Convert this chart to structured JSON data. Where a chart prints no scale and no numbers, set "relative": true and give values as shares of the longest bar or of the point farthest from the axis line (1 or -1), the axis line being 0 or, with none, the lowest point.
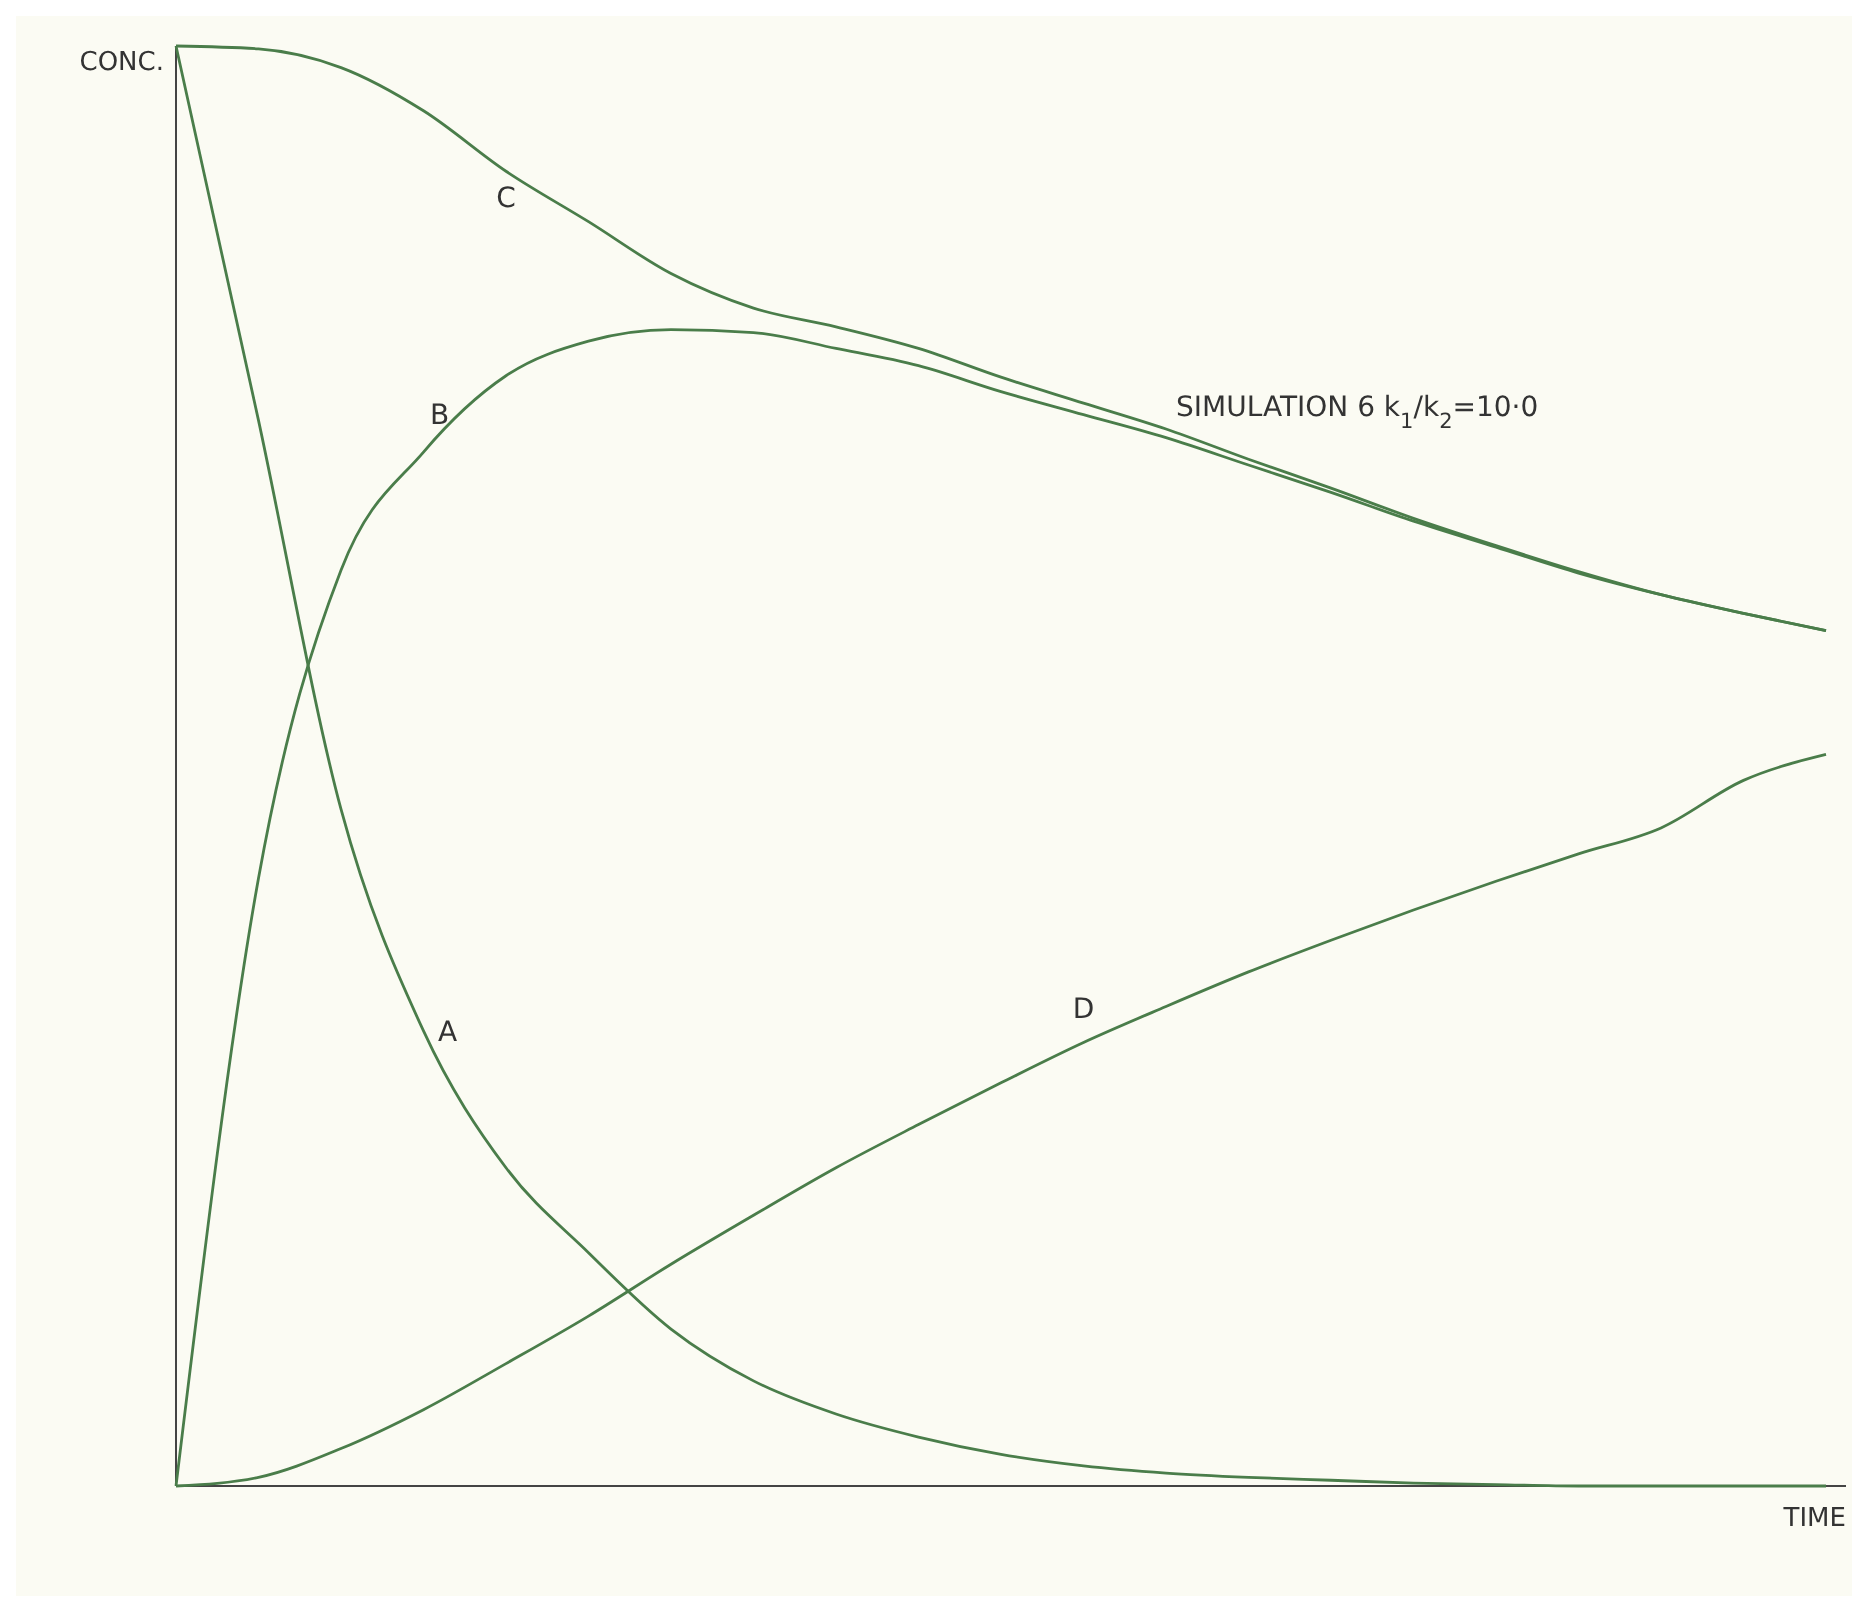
{
  "chart_data": {
    "type": "line",
    "relative": true,
    "xlabel": "TIME",
    "ylabel": "CONC.",
    "annotations": [
      "SIMULATION 6  k$_{1}$/k$_{2}$=10·0"
    ],
    "categories": [
      null,
      null,
      null,
      null,
      null,
      null,
      null,
      null,
      null,
      null,
      null,
      null,
      null,
      null,
      null,
      null,
      null,
      null,
      null,
      null,
      null
    ],
    "marker": "none",
    "line_style": "solid",
    "series": [
      {
        "name": "A",
        "color": "#4a7d4a",
        "values": [
          1,
          0.74,
          0.47,
          0.316,
          0.221,
          0.162,
          0.109,
          0.073,
          0.05,
          0.034,
          0.022,
          0.014,
          0.009,
          0.006,
          0.004,
          0.002,
          0.001,
          0,
          0,
          0,
          0
        ]
      },
      {
        "name": "B",
        "color": "#4a7d4a",
        "values": [
          0,
          0.422,
          0.636,
          0.718,
          0.771,
          0.795,
          0.803,
          0.801,
          0.79,
          0.778,
          0.76,
          0.744,
          0.728,
          0.709,
          0.69,
          0.67,
          0.652,
          0.634,
          0.619,
          0.606,
          0.594
        ]
      },
      {
        "name": "C",
        "color": "#4a7d4a",
        "values": [
          1,
          0.998,
          0.985,
          0.955,
          0.913,
          0.878,
          0.842,
          0.818,
          0.805,
          0.79,
          0.77,
          0.752,
          0.734,
          0.713,
          0.693,
          0.672,
          0.653,
          0.635,
          0.619,
          0.606,
          0.594
        ]
      },
      {
        "name": "D",
        "color": "#4a7d4a",
        "values": [
          0,
          0.006,
          0.026,
          0.053,
          0.085,
          0.118,
          0.154,
          0.188,
          0.221,
          0.251,
          0.28,
          0.308,
          0.333,
          0.357,
          0.379,
          0.4,
          0.42,
          0.439,
          0.457,
          0.49,
          0.508
        ]
      }
    ]
  }
}
